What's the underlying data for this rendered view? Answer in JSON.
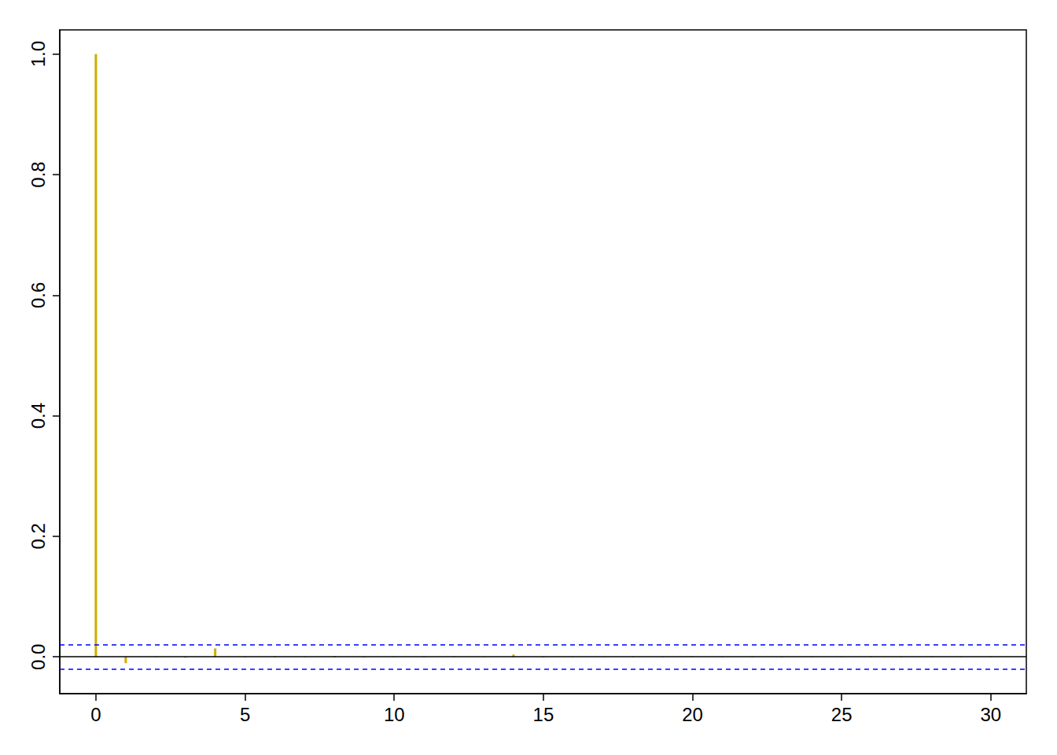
{
  "chart_data": {
    "type": "bar",
    "x": [
      0,
      1,
      2,
      3,
      4,
      5,
      6,
      7,
      8,
      9,
      10,
      11,
      12,
      13,
      14,
      15,
      16,
      17,
      18,
      19,
      20,
      21,
      22,
      23,
      24,
      25,
      26,
      27,
      28,
      29,
      30
    ],
    "values": [
      1.0,
      -0.0104,
      0.0008,
      -0.0015,
      0.014,
      -0.001,
      0.0012,
      -0.0008,
      0.0015,
      -0.0012,
      0.0009,
      -0.0011,
      0.001,
      -0.0009,
      0.004,
      -0.0012,
      0.0008,
      -0.0007,
      0.0011,
      -0.0009,
      0.001,
      -0.0008,
      0.0009,
      -0.0011,
      0.0007,
      -0.0009,
      0.001,
      -0.0008,
      0.0009,
      -0.001,
      0.0008
    ],
    "color": "#CDAD00",
    "confidence_bounds": [
      -0.02,
      0.02
    ],
    "xlim": [
      -1.21,
      31.19
    ],
    "xticks": [
      0,
      5,
      10,
      15,
      20,
      25,
      30
    ],
    "ylim": [
      -0.061,
      1.04
    ],
    "yticks": [
      {
        "value": 0,
        "label": "0.0"
      },
      0.2,
      0.4,
      0.6,
      0.8,
      {
        "value": 1,
        "label": "1.0"
      }
    ]
  }
}
